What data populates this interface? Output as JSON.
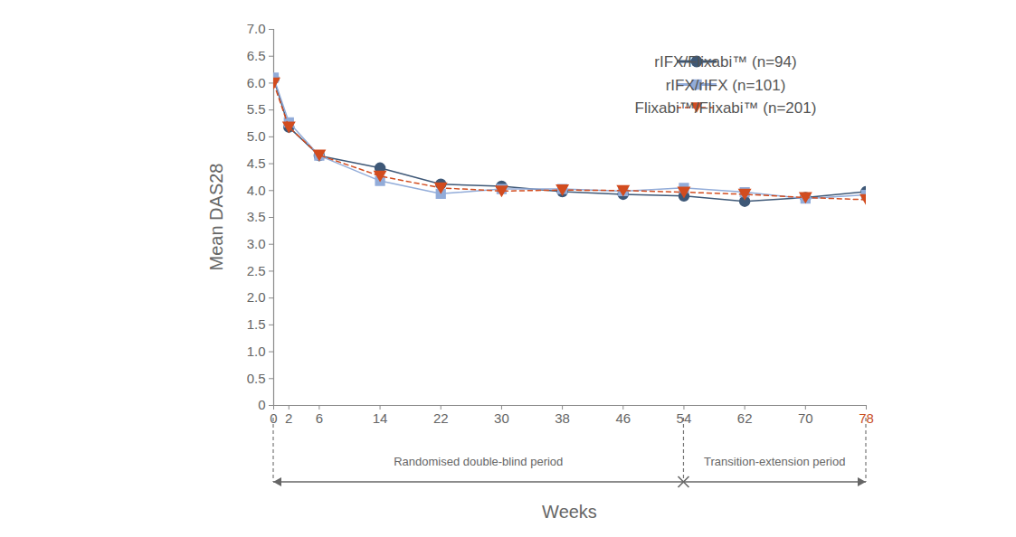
{
  "chart_data": {
    "type": "line",
    "x_label": "Weeks",
    "y_label": "Mean DAS28",
    "x": [
      0,
      2,
      6,
      14,
      22,
      30,
      38,
      46,
      54,
      62,
      70,
      78
    ],
    "xlim": [
      0,
      78
    ],
    "xticks": [
      0,
      2,
      6,
      14,
      22,
      30,
      38,
      46,
      54,
      62,
      70,
      78
    ],
    "ylim": [
      0,
      7
    ],
    "yticks": [
      0,
      0.5,
      {
        "value": 1,
        "label": "1.0"
      },
      1.5,
      {
        "value": 2,
        "label": "2.0"
      },
      2.5,
      {
        "value": 3,
        "label": "3.0"
      },
      3.5,
      {
        "value": 4,
        "label": "4.0"
      },
      4.5,
      {
        "value": 5,
        "label": "5.0"
      },
      5.5,
      {
        "value": 6,
        "label": "6.0"
      },
      6.5,
      {
        "value": 7,
        "label": "7.0"
      }
    ],
    "grid": false,
    "legend": "top-right",
    "series": [
      {
        "name": "rIFX/Flixabi™ (n=94)",
        "color": "#3e5877",
        "marker": "circle",
        "line_style": "solid",
        "values": [
          6.08,
          5.18,
          4.65,
          4.42,
          4.12,
          4.08,
          3.98,
          3.93,
          3.9,
          3.8,
          3.87,
          3.98
        ]
      },
      {
        "name": "rIFX/rIFX (n=101)",
        "color": "#92acd9",
        "marker": "square",
        "line_style": "solid",
        "values": [
          6.1,
          5.27,
          4.65,
          4.18,
          3.94,
          4.03,
          4.03,
          3.99,
          4.05,
          3.97,
          3.85,
          3.92
        ]
      },
      {
        "name": "Flixabi™/Flixabi™ (n=201)",
        "color": "#d24c1f",
        "marker": "triangle-down",
        "line_style": "dashed",
        "values": [
          6.0,
          5.18,
          4.66,
          4.27,
          4.05,
          3.99,
          4.01,
          4.0,
          3.97,
          3.93,
          3.87,
          3.83
        ]
      }
    ],
    "periods": [
      {
        "label": "Randomised double-blind period",
        "start": 0,
        "end": 54
      },
      {
        "label": "Transition-extension period",
        "start": 54,
        "end": 78
      }
    ]
  }
}
